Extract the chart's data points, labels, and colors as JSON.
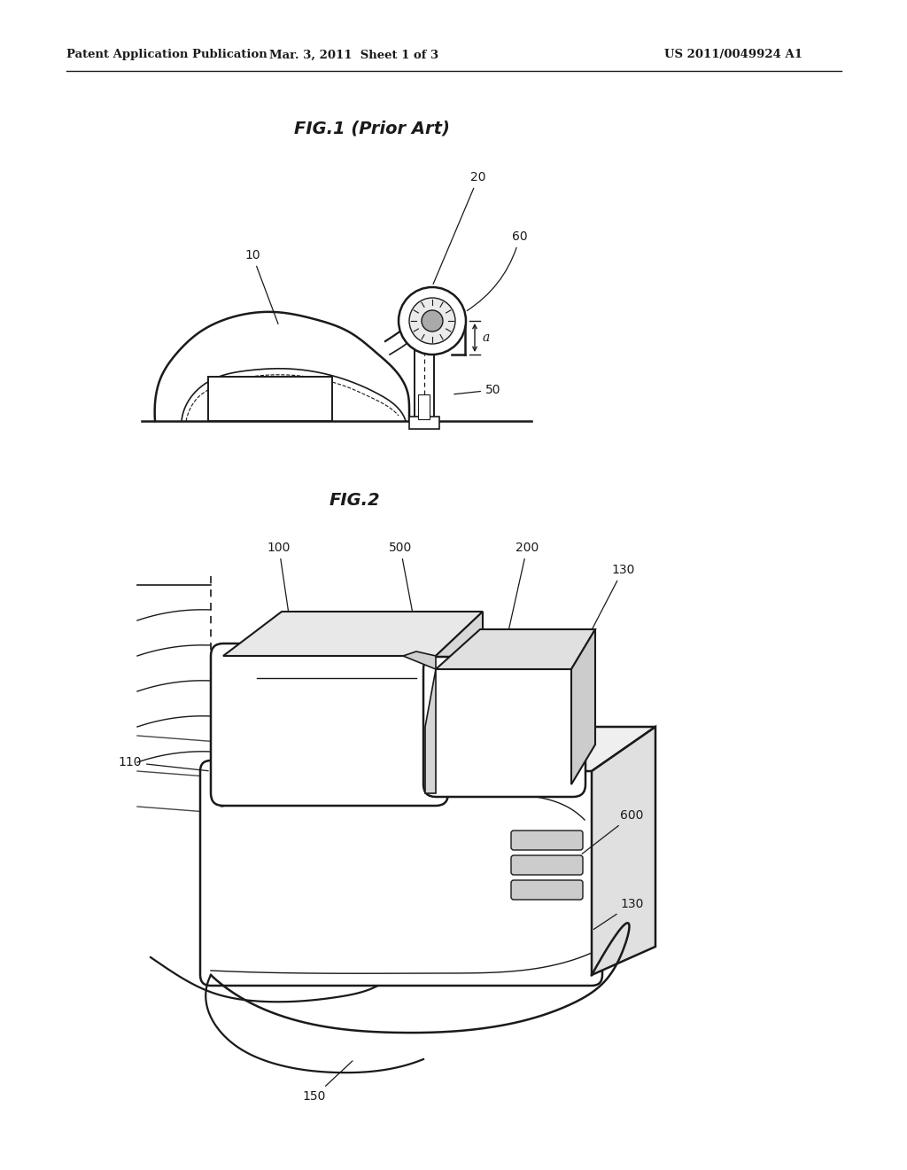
{
  "bg_color": "#ffffff",
  "header_left": "Patent Application Publication",
  "header_center": "Mar. 3, 2011  Sheet 1 of 3",
  "header_right": "US 2011/0049924 A1",
  "fig1_title": "FIG.1 (Prior Art)",
  "fig2_title": "FIG.2",
  "line_color": "#1a1a1a",
  "header_fontsize": 9.5,
  "title_fontsize": 14,
  "label_fontsize": 10
}
